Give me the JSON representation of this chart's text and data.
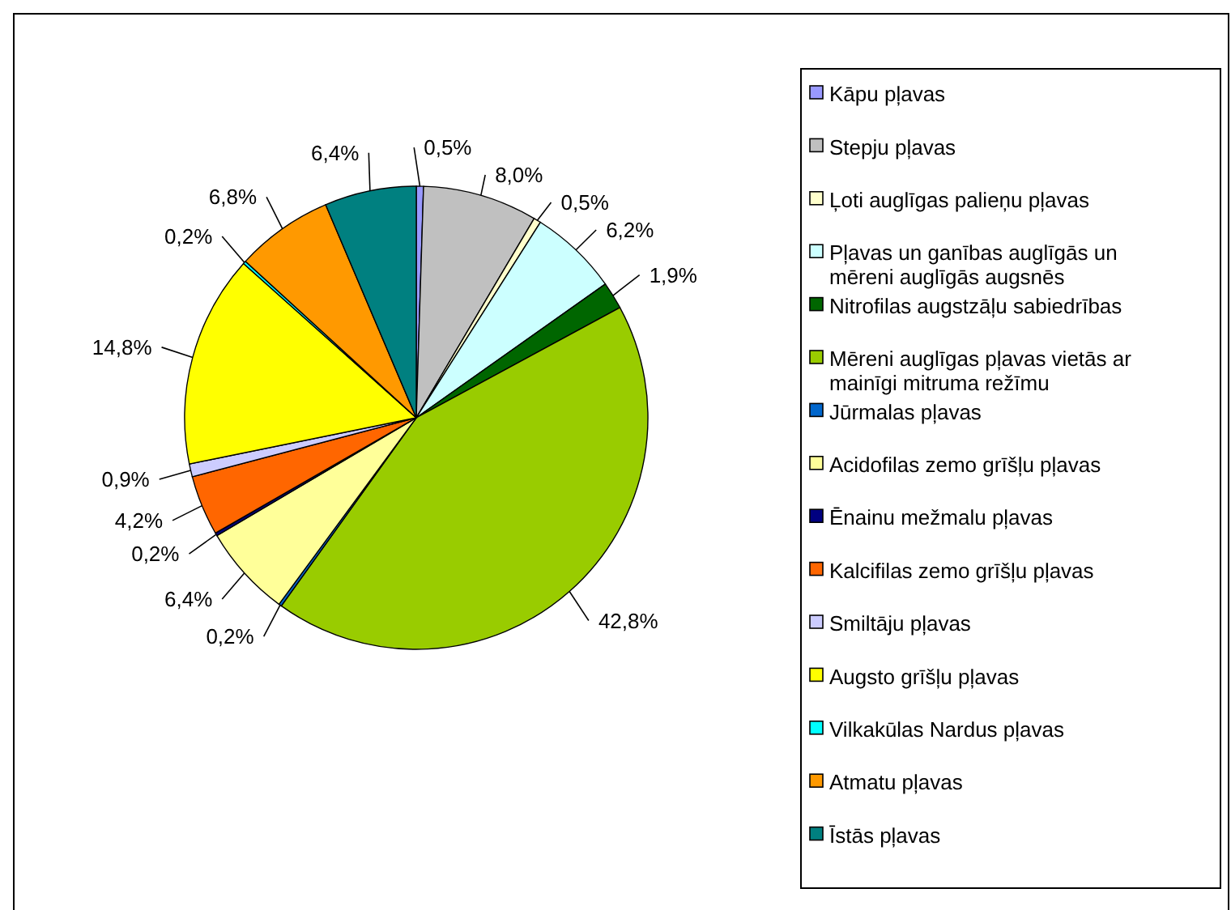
{
  "chart_data": {
    "type": "pie",
    "categories": [
      "Kāpu pļavas",
      "Stepju pļavas",
      "Ļoti auglīgas palieņu pļavas",
      "Pļavas un ganības auglīgās un mēreni auglīgās augsnēs",
      "Nitrofilas augstzāļu sabiedrības",
      "Mēreni auglīgas pļavas vietās ar mainīgi mitruma režīmu",
      "Jūrmalas pļavas",
      "Acidofilas zemo grīšļu pļavas",
      "Ēnainu mežmalu pļavas",
      "Kalcifilas zemo grīšļu pļavas",
      "Smiltāju pļavas",
      "Augsto grīšļu pļavas",
      "Vilkakūlas Nardus pļavas",
      "Atmatu pļavas",
      "Īstās pļavas"
    ],
    "values": [
      0.5,
      8.0,
      0.5,
      6.2,
      1.9,
      42.8,
      0.2,
      6.4,
      0.2,
      4.2,
      0.9,
      14.8,
      0.2,
      6.8,
      6.4
    ],
    "value_labels": [
      "0,5%",
      "8,0%",
      "0,5%",
      "6,2%",
      "1,9%",
      "42,8%",
      "0,2%",
      "6,4%",
      "0,2%",
      "4,2%",
      "0,9%",
      "14,8%",
      "0,2%",
      "6,8%",
      "6,4%"
    ],
    "colors": [
      "#9999ff",
      "#c0c0c0",
      "#ffffcc",
      "#ccffff",
      "#006600",
      "#99cc00",
      "#0066cc",
      "#ffff99",
      "#000080",
      "#ff6600",
      "#ccccff",
      "#ffff00",
      "#00ffff",
      "#ff9900",
      "#008080"
    ],
    "legend": "right"
  }
}
